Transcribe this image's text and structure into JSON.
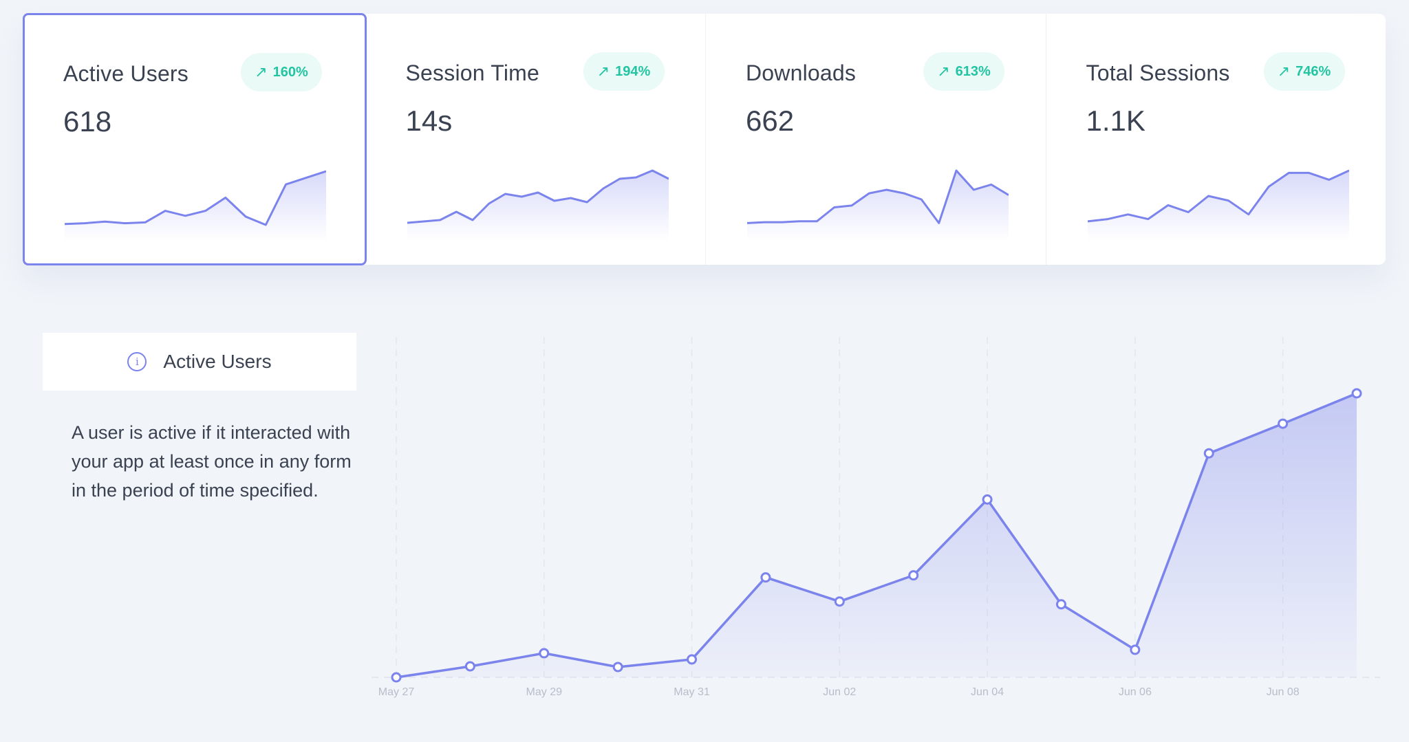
{
  "cards": [
    {
      "title": "Active Users",
      "value": "618",
      "badge": "160%",
      "trend_icon": "arrow-up-right-icon",
      "spark": [
        6,
        7,
        9,
        7,
        8,
        22,
        16,
        22,
        38,
        15,
        5,
        54,
        62,
        70
      ]
    },
    {
      "title": "Session Time",
      "value": "14s",
      "badge": "194%",
      "trend_icon": "arrow-up-right-icon",
      "spark": [
        8,
        10,
        12,
        24,
        12,
        36,
        50,
        46,
        52,
        40,
        44,
        38,
        58,
        72,
        74,
        84,
        72
      ]
    },
    {
      "title": "Downloads",
      "value": "662",
      "badge": "613%",
      "trend_icon": "arrow-up-right-icon",
      "spark": [
        6,
        7,
        7,
        8,
        8,
        24,
        26,
        40,
        44,
        40,
        33,
        6,
        66,
        44,
        50,
        38
      ]
    },
    {
      "title": "Total Sessions",
      "value": "1.1K",
      "badge": "746%",
      "trend_icon": "arrow-up-right-icon",
      "spark": [
        6,
        8,
        12,
        8,
        20,
        14,
        28,
        24,
        12,
        36,
        48,
        48,
        42,
        50
      ]
    }
  ],
  "selected_card": 0,
  "info": {
    "icon": "info-icon",
    "title": "Active Users",
    "description": "A user is active if it interacted with your app at least once in any form in the period of time specified."
  },
  "colors": {
    "accent": "#7b83ec",
    "badge_text": "#22c4a2",
    "badge_bg": "#eafaf6"
  },
  "chart_data": {
    "type": "area",
    "x": [
      "May 27",
      "May 28",
      "May 29",
      "May 30",
      "May 31",
      "Jun 01",
      "Jun 02",
      "Jun 03",
      "Jun 04",
      "Jun 05",
      "Jun 06",
      "Jun 07",
      "Jun 08",
      "Jun 09"
    ],
    "series": [
      {
        "values": [
          0,
          16,
          35,
          15,
          26,
          145,
          110,
          148,
          258,
          106,
          40,
          325,
          368,
          412
        ]
      }
    ],
    "tick_labels": [
      "May 27",
      "May 29",
      "May 31",
      "Jun 02",
      "Jun 04",
      "Jun 06",
      "Jun 08"
    ],
    "ylim": [
      0,
      412
    ],
    "grid": "vertical dashed",
    "legend": "none"
  }
}
